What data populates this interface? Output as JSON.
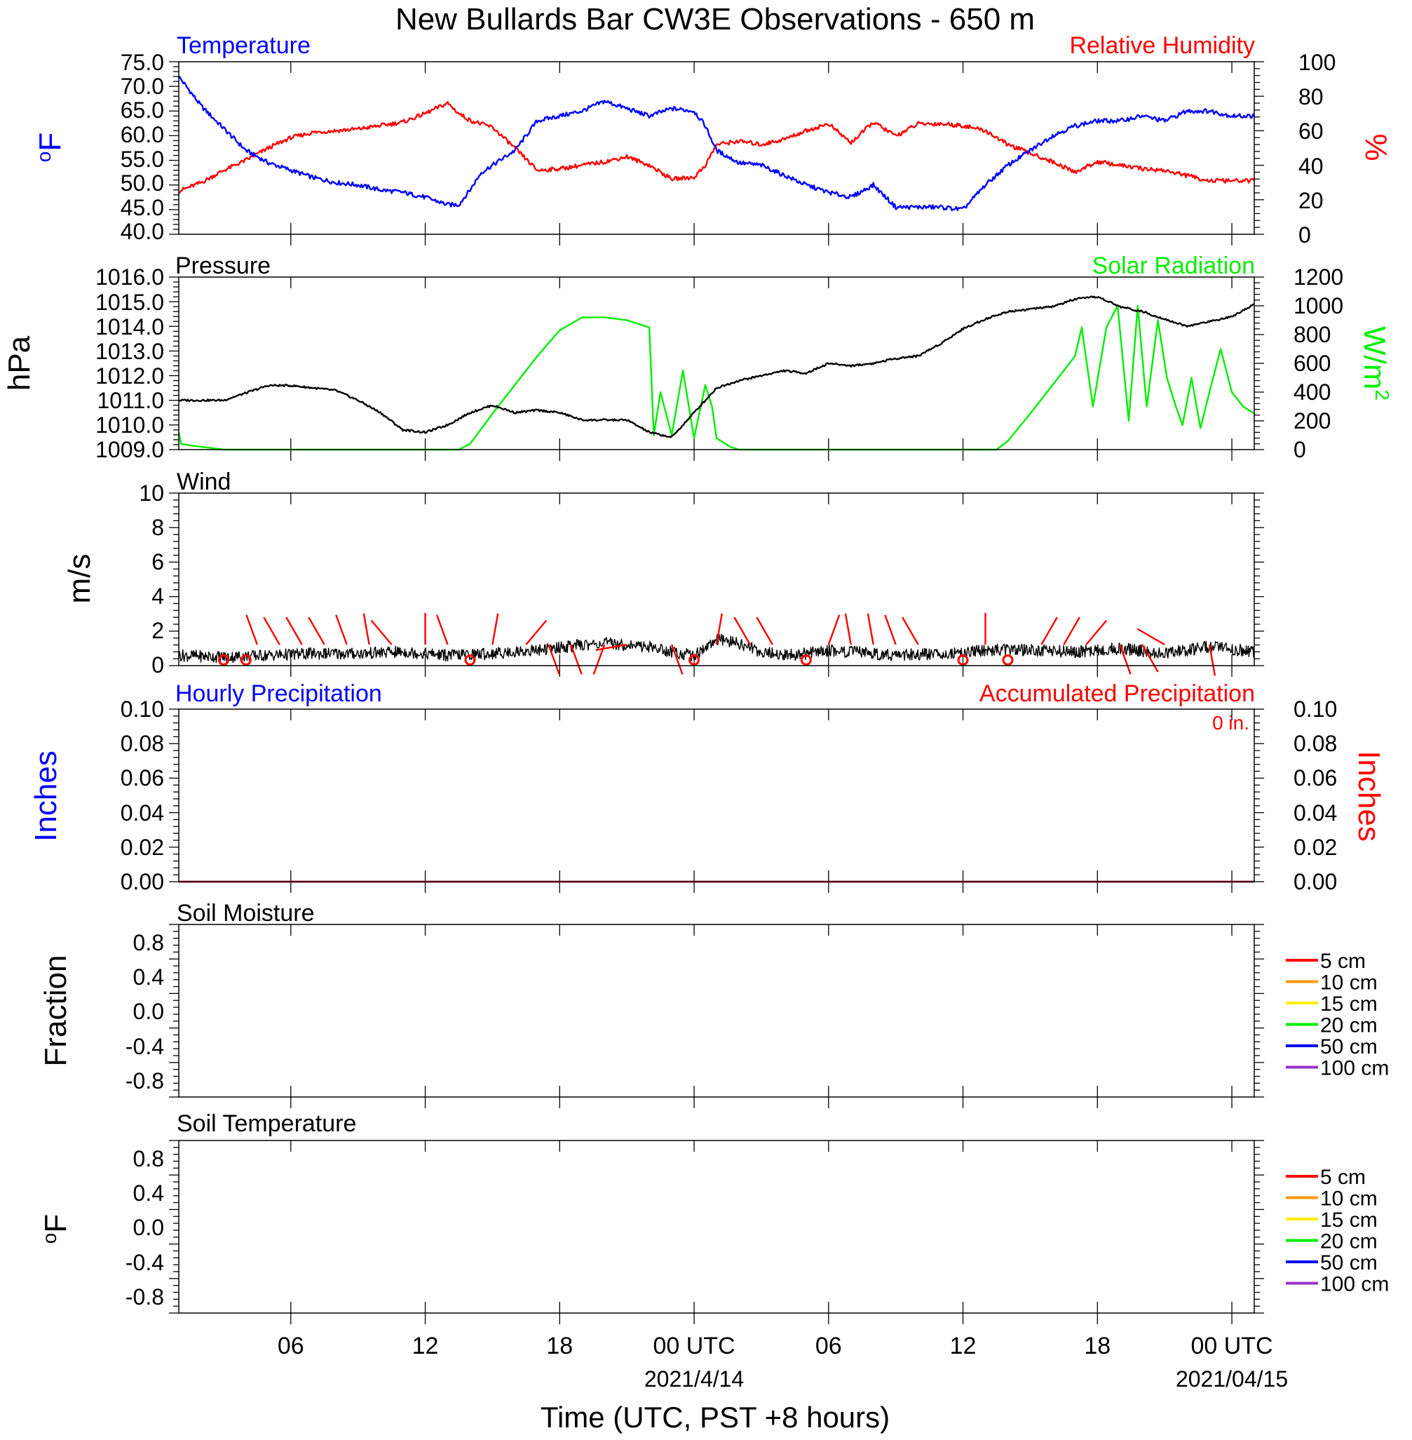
{
  "title": "New Bullards Bar CW3E Observations - 650 m",
  "x_axis": {
    "label": "Time (UTC, PST +8 hours)",
    "range_hours": [
      0,
      48
    ],
    "ticks": [
      {
        "hour": 5,
        "label": "06",
        "date": ""
      },
      {
        "hour": 11,
        "label": "12",
        "date": ""
      },
      {
        "hour": 17,
        "label": "18",
        "date": ""
      },
      {
        "hour": 23,
        "label": "00 UTC",
        "date": "2021/4/14"
      },
      {
        "hour": 29,
        "label": "06",
        "date": ""
      },
      {
        "hour": 35,
        "label": "12",
        "date": ""
      },
      {
        "hour": 41,
        "label": "18",
        "date": ""
      },
      {
        "hour": 47,
        "label": "00 UTC",
        "date": "2021/04/15"
      }
    ]
  },
  "colors": {
    "temperature": "#0000ff",
    "humidity": "#ff0000",
    "pressure": "#000000",
    "solar": "#00ee00",
    "wind": "#000000",
    "barbs": "#ff0000",
    "hourly_precip": "#0000ff",
    "accum_precip": "#ff0000"
  },
  "panels": {
    "temp_rh": {
      "left_title": "Temperature",
      "right_title": "Relative Humidity",
      "left_unit": "oF",
      "right_unit": "%",
      "left_ticks": [
        "75.0",
        "70.0",
        "65.0",
        "60.0",
        "55.0",
        "50.0",
        "45.0",
        "40.0"
      ],
      "right_ticks": [
        "100",
        "80",
        "60",
        "40",
        "20",
        "0"
      ]
    },
    "pressure_solar": {
      "left_title": "Pressure",
      "right_title": "Solar Radiation",
      "left_unit": "hPa",
      "right_unit": "W/m",
      "right_unit_sup": "2",
      "left_ticks": [
        "1016.0",
        "1015.0",
        "1014.0",
        "1013.0",
        "1012.0",
        "1011.0",
        "1010.0",
        "1009.0"
      ],
      "right_ticks": [
        "1200",
        "1000",
        "800",
        "600",
        "400",
        "200",
        "0"
      ]
    },
    "wind": {
      "left_title": "Wind",
      "left_unit": "m/s",
      "left_ticks": [
        "10",
        "8",
        "6",
        "4",
        "2",
        "0"
      ]
    },
    "precip": {
      "left_title": "Hourly Precipitation",
      "right_title": "Accumulated Precipitation",
      "total_label": "0 in.",
      "left_unit": "Inches",
      "right_unit": "Inches",
      "left_ticks": [
        "0.10",
        "0.08",
        "0.06",
        "0.04",
        "0.02",
        "0.00"
      ],
      "right_ticks": [
        "0.10",
        "0.08",
        "0.06",
        "0.04",
        "0.02",
        "0.00"
      ]
    },
    "soil_moisture": {
      "left_title": "Soil Moisture",
      "left_unit": "Fraction",
      "left_ticks": [
        "0.8",
        "0.4",
        "0.0",
        "-0.4",
        "-0.8"
      ]
    },
    "soil_temp": {
      "left_title": "Soil Temperature",
      "left_unit": "oF",
      "left_ticks": [
        "0.8",
        "0.4",
        "0.0",
        "-0.4",
        "-0.8"
      ]
    }
  },
  "soil_legend": [
    {
      "label": "5 cm",
      "color": "#ff0000"
    },
    {
      "label": "10 cm",
      "color": "#ff9900"
    },
    {
      "label": "15 cm",
      "color": "#ffee00"
    },
    {
      "label": "20 cm",
      "color": "#00ee00"
    },
    {
      "label": "50 cm",
      "color": "#0000ff"
    },
    {
      "label": "100 cm",
      "color": "#9933cc"
    }
  ],
  "chart_data": [
    {
      "type": "line",
      "panel": "temp_rh",
      "x_unit": "hours since 2021-04-12 19 UTC",
      "series": [
        {
          "name": "Temperature",
          "axis": "left",
          "ylim": [
            40,
            75
          ],
          "x": [
            0,
            1,
            2,
            3,
            4,
            5,
            6,
            7,
            8,
            9,
            10,
            11,
            12,
            12.5,
            13,
            13.5,
            14,
            15,
            16,
            17,
            18,
            19,
            20,
            21,
            22,
            23,
            23.5,
            24,
            25,
            26,
            27,
            28,
            29,
            30,
            31,
            32,
            33,
            34,
            35,
            36,
            37,
            37.5,
            38,
            39,
            40,
            41,
            42,
            43,
            44,
            45,
            46,
            47,
            48
          ],
          "y": [
            72,
            66,
            61.5,
            57,
            54.5,
            53,
            51.5,
            50.5,
            50,
            49,
            48.5,
            47.5,
            46,
            46,
            49,
            52.5,
            54,
            57,
            63,
            64,
            65,
            67,
            65.5,
            64,
            65.5,
            65,
            62,
            57,
            54.5,
            54,
            52,
            50,
            48.5,
            47.5,
            50,
            45.5,
            45.5,
            45.5,
            45,
            50,
            54,
            55.5,
            57,
            60,
            62,
            63,
            63,
            64,
            63,
            65,
            65,
            64,
            64
          ]
        },
        {
          "name": "Relative Humidity",
          "axis": "right",
          "ylim": [
            0,
            100
          ],
          "x": [
            0,
            1,
            2,
            3,
            4,
            5,
            6,
            7,
            8,
            9,
            10,
            11,
            12,
            12.5,
            13,
            14,
            15,
            16,
            17,
            18,
            19,
            20,
            21,
            22,
            23,
            23.5,
            24,
            25,
            26,
            27,
            28,
            29,
            30,
            31,
            32,
            33,
            34,
            35,
            36,
            37,
            38,
            39,
            40,
            41,
            42,
            43,
            44,
            45,
            46,
            47,
            48
          ],
          "y": [
            25,
            30,
            37,
            43,
            50,
            56,
            59,
            60,
            61,
            63,
            65,
            70,
            76,
            70,
            66,
            62,
            50,
            37,
            38,
            40,
            42,
            45,
            40,
            32,
            33,
            40,
            52,
            54,
            52,
            55,
            60,
            64,
            53,
            65,
            57,
            64,
            64,
            63,
            60,
            52,
            47,
            42,
            36,
            42,
            40,
            38,
            37,
            34,
            31,
            31,
            31
          ]
        }
      ]
    },
    {
      "type": "line",
      "panel": "pressure_solar",
      "x_unit": "hours since 2021-04-12 19 UTC",
      "series": [
        {
          "name": "Pressure",
          "axis": "left",
          "ylim": [
            1009,
            1016
          ],
          "x": [
            0,
            1,
            2,
            3,
            4,
            5,
            6,
            7,
            8,
            9,
            10,
            11,
            12,
            13,
            14,
            15,
            16,
            17,
            18,
            19,
            20,
            21,
            22,
            23,
            24,
            25,
            26,
            27,
            28,
            29,
            30,
            31,
            32,
            33,
            34,
            35,
            36,
            37,
            38,
            39,
            40,
            41,
            42,
            43,
            44,
            45,
            46,
            47,
            48
          ],
          "y": [
            1011,
            1011,
            1011,
            1011.3,
            1011.6,
            1011.6,
            1011.5,
            1011.4,
            1011,
            1010.5,
            1009.8,
            1009.7,
            1010,
            1010.5,
            1010.8,
            1010.5,
            1010.6,
            1010.5,
            1010.2,
            1010.2,
            1010.2,
            1009.7,
            1009.5,
            1010.5,
            1011.5,
            1011.8,
            1012,
            1012.2,
            1012.1,
            1012.5,
            1012.4,
            1012.5,
            1012.7,
            1012.8,
            1013.3,
            1013.9,
            1014.3,
            1014.6,
            1014.7,
            1014.8,
            1015.1,
            1015.2,
            1014.8,
            1014.6,
            1014.3,
            1014,
            1014.2,
            1014.4,
            1014.9
          ]
        },
        {
          "name": "Solar Radiation",
          "axis": "right",
          "ylim": [
            0,
            1200
          ],
          "x": [
            0,
            0.1,
            0.5,
            1,
            2,
            12.5,
            13,
            14,
            15,
            16,
            17,
            18,
            19,
            20,
            21,
            21.2,
            21.5,
            22,
            22.5,
            23,
            23.5,
            23.8,
            24,
            24.3,
            24.6,
            25,
            36.5,
            37,
            38,
            39,
            40,
            40.3,
            40.8,
            41.4,
            41.9,
            42.4,
            42.8,
            43.2,
            43.7,
            44.1,
            44.5,
            44.8,
            45.2,
            45.6,
            46,
            46.5,
            47,
            47.5,
            48
          ],
          "y": [
            120,
            40,
            30,
            20,
            0,
            0,
            40,
            250,
            450,
            650,
            830,
            920,
            920,
            900,
            850,
            100,
            400,
            100,
            550,
            80,
            450,
            300,
            80,
            50,
            20,
            0,
            0,
            60,
            250,
            450,
            650,
            850,
            300,
            850,
            1000,
            200,
            1000,
            300,
            900,
            500,
            300,
            170,
            500,
            150,
            400,
            700,
            400,
            300,
            250
          ]
        }
      ]
    },
    {
      "type": "line",
      "panel": "wind",
      "x_unit": "hours since 2021-04-12 19 UTC",
      "series": [
        {
          "name": "Wind Speed",
          "ylim": [
            0,
            10
          ],
          "x": [
            0,
            2,
            4,
            6,
            8,
            10,
            12,
            14,
            16,
            18,
            19,
            20,
            21,
            22,
            23,
            24,
            25,
            26,
            27,
            28,
            29,
            30,
            32,
            34,
            36,
            38,
            40,
            42,
            44,
            46,
            48
          ],
          "y": [
            0.6,
            0.5,
            0.6,
            0.7,
            0.7,
            0.8,
            0.6,
            0.7,
            0.9,
            1.2,
            1.3,
            1.2,
            1.1,
            0.8,
            0.6,
            1.5,
            1.3,
            0.8,
            0.6,
            0.7,
            0.9,
            0.8,
            0.6,
            0.7,
            0.9,
            0.9,
            0.8,
            1.0,
            0.7,
            1.1,
            0.8
          ]
        }
      ],
      "calm_hours": [
        2,
        3,
        13,
        23,
        28,
        35,
        37
      ],
      "barbs": [
        {
          "hour": 3.5,
          "dir_deg": 340
        },
        {
          "hour": 4.5,
          "dir_deg": 330
        },
        {
          "hour": 5.5,
          "dir_deg": 330
        },
        {
          "hour": 6.5,
          "dir_deg": 330
        },
        {
          "hour": 7.5,
          "dir_deg": 340
        },
        {
          "hour": 8.5,
          "dir_deg": 350
        },
        {
          "hour": 9.5,
          "dir_deg": 320
        },
        {
          "hour": 11,
          "dir_deg": 360
        },
        {
          "hour": 12,
          "dir_deg": 340
        },
        {
          "hour": 14,
          "dir_deg": 10
        },
        {
          "hour": 15.5,
          "dir_deg": 40
        },
        {
          "hour": 16.5,
          "dir_deg": 160
        },
        {
          "hour": 17.5,
          "dir_deg": 160
        },
        {
          "hour": 19,
          "dir_deg": 200
        },
        {
          "hour": 20,
          "dir_deg": 260
        },
        {
          "hour": 22,
          "dir_deg": 160
        },
        {
          "hour": 24,
          "dir_deg": 10
        },
        {
          "hour": 25.5,
          "dir_deg": 330
        },
        {
          "hour": 26.5,
          "dir_deg": 330
        },
        {
          "hour": 29,
          "dir_deg": 20
        },
        {
          "hour": 30,
          "dir_deg": 350
        },
        {
          "hour": 31,
          "dir_deg": 350
        },
        {
          "hour": 32,
          "dir_deg": 340
        },
        {
          "hour": 33,
          "dir_deg": 330
        },
        {
          "hour": 36,
          "dir_deg": 360
        },
        {
          "hour": 38.5,
          "dir_deg": 30
        },
        {
          "hour": 39.5,
          "dir_deg": 30
        },
        {
          "hour": 40.5,
          "dir_deg": 40
        },
        {
          "hour": 42,
          "dir_deg": 160
        },
        {
          "hour": 43,
          "dir_deg": 150
        },
        {
          "hour": 44,
          "dir_deg": 300
        },
        {
          "hour": 46,
          "dir_deg": 170
        }
      ]
    },
    {
      "type": "line",
      "panel": "precip",
      "series": [
        {
          "name": "Hourly Precipitation",
          "axis": "left",
          "ylim": [
            0,
            0.1
          ],
          "x": [
            0,
            48
          ],
          "y": [
            0,
            0
          ]
        },
        {
          "name": "Accumulated Precipitation",
          "axis": "right",
          "ylim": [
            0,
            0.1
          ],
          "x": [
            0,
            48
          ],
          "y": [
            0,
            0
          ]
        }
      ]
    },
    {
      "type": "line",
      "panel": "soil_moisture",
      "ylim": [
        -1,
        1
      ],
      "series": [
        {
          "name": "5 cm",
          "values": []
        },
        {
          "name": "10 cm",
          "values": []
        },
        {
          "name": "15 cm",
          "values": []
        },
        {
          "name": "20 cm",
          "values": []
        },
        {
          "name": "50 cm",
          "values": []
        },
        {
          "name": "100 cm",
          "values": []
        }
      ]
    },
    {
      "type": "line",
      "panel": "soil_temp",
      "ylim": [
        -1,
        1
      ],
      "series": [
        {
          "name": "5 cm",
          "values": []
        },
        {
          "name": "10 cm",
          "values": []
        },
        {
          "name": "15 cm",
          "values": []
        },
        {
          "name": "20 cm",
          "values": []
        },
        {
          "name": "50 cm",
          "values": []
        },
        {
          "name": "100 cm",
          "values": []
        }
      ]
    }
  ]
}
